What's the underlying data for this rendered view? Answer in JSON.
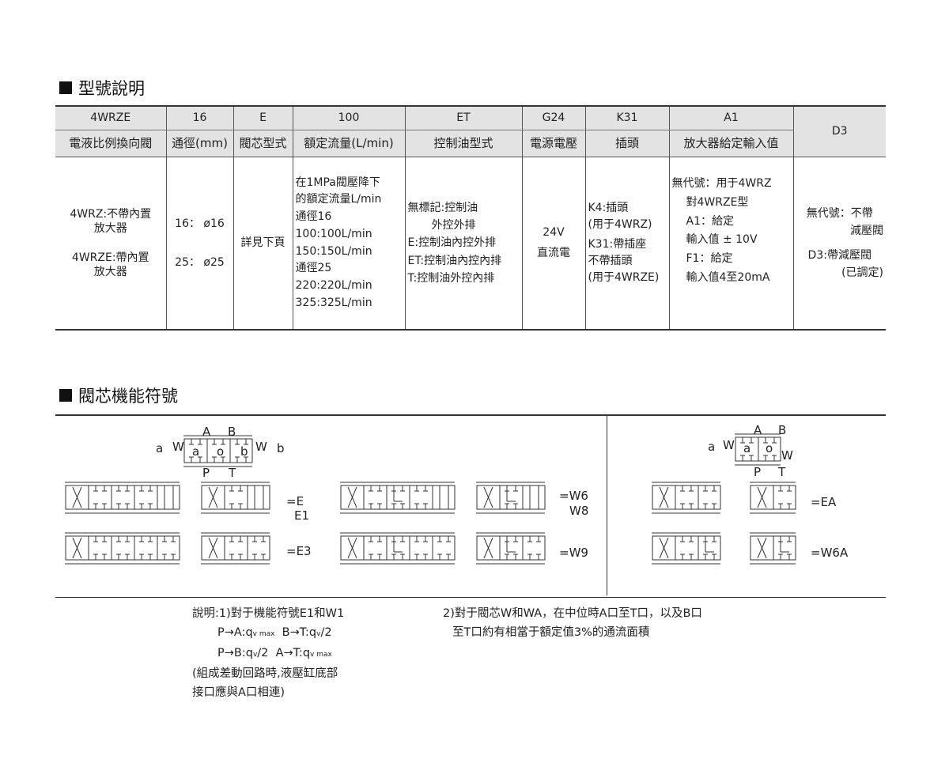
{
  "section1_title": "型號說明",
  "section2_title": "閥芯機能符號",
  "table": {
    "codes": [
      "4WRZE",
      "16",
      "E",
      "100",
      "ET",
      "G24",
      "K31",
      "A1",
      "D3"
    ],
    "headers": [
      "電液比例換向閥",
      "通徑(mm)",
      "閥芯型式",
      "額定流量(L/min)",
      "控制油型式",
      "電源電壓",
      "插頭",
      "放大器給定輸入值"
    ],
    "col1": [
      "4WRZ:不帶內置",
      "放大器",
      "4WRZE:帶內置",
      "放大器"
    ],
    "col2": [
      "16： ø16",
      "25： ø25"
    ],
    "col3": "詳見下頁",
    "col4": [
      "在1MPa閥壓降下",
      "的額定流量L/min",
      "通徑16",
      "100:100L/min",
      "150:150L/min",
      "通徑25",
      "220:220L/min",
      "325:325L/min"
    ],
    "col5": [
      "無標記:控制油",
      "外控外排",
      "E:控制油內控外排",
      "ET:控制油內控內排",
      "T:控制油外控內排"
    ],
    "col6": [
      "24V",
      "直流電"
    ],
    "col7": [
      "K4:插頭",
      "(用于4WRZ)",
      "K31:帶插座",
      "不帶插頭",
      "(用于4WRZE)"
    ],
    "col8": [
      "無代號：用于4WRZ",
      "對4WRZE型",
      "A1：給定",
      "輸入值 ± 10V",
      "F1：給定",
      "輸入值4至20mA"
    ],
    "col9": [
      "無代號：不帶",
      "減壓閥",
      "D3:帶減壓閥",
      "(已調定)"
    ]
  },
  "symbols": {
    "ports": {
      "A": "A",
      "B": "B",
      "P": "P",
      "T": "T",
      "W": "W",
      "a": "a",
      "o": "o",
      "b": "b"
    },
    "labels": {
      "E": "=E",
      "E1": "E1",
      "E3": "=E3",
      "W6": "=W6",
      "W8": "W8",
      "W9": "=W9",
      "EA": "=EA",
      "W6A": "=W6A"
    }
  },
  "notes": {
    "n1": [
      "說明:1)對于機能符號E1和W1",
      "(組成差動回路時,液壓缸底部",
      "接口應與A口相連)"
    ],
    "f1a": "P→A:q",
    "f1b": "v max",
    "f1c": "  B→T:q",
    "f1d": "v",
    "f1e": "/2",
    "f2a": "P→B:q",
    "f2b": "v",
    "f2c": "/2  A→T:q",
    "f2d": "v max",
    "n2": [
      "2)對于閥芯W和WA，在中位時A口至T口，以及B口",
      "至T口約有相當于額定值3%的通流面積"
    ]
  }
}
